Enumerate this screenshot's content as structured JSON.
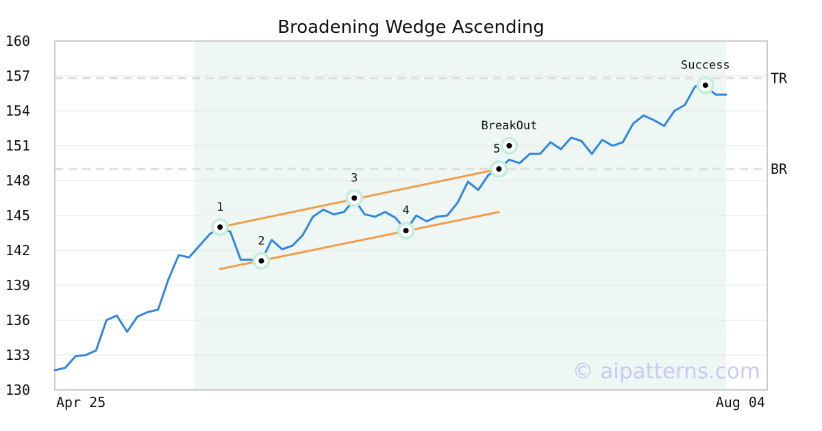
{
  "chart_data": {
    "type": "line",
    "title": "Broadening Wedge Ascending",
    "ylim": [
      130,
      160
    ],
    "yticks": [
      130,
      133,
      136,
      139,
      142,
      145,
      148,
      151,
      154,
      157,
      160
    ],
    "xtick_labels": [
      "Apr 25",
      "Aug 04"
    ],
    "grid": "horizontal",
    "watermark": "© aipatterns.com",
    "colors": {
      "price": "#2e86de",
      "trendline": "#f39c47",
      "highlight_region": "#eef7f3",
      "marker_halo": "#c5eedb",
      "reference_line": "#dddddd"
    },
    "series": [
      {
        "values": [
          131.7,
          131.9,
          132.9,
          133.0,
          133.4,
          136.0,
          136.4,
          135.0,
          136.3,
          136.7,
          136.9,
          139.5,
          141.6,
          141.4,
          142.4,
          143.4,
          144.0,
          143.6,
          141.2,
          141.2,
          141.1,
          142.9,
          142.1,
          142.4,
          143.3,
          144.9,
          145.5,
          145.1,
          145.3,
          146.4,
          145.1,
          144.9,
          145.3,
          144.8,
          143.7,
          145.0,
          144.5,
          144.9,
          145.0,
          146.1,
          147.9,
          147.2,
          148.5,
          149.0,
          149.8,
          149.5,
          150.3,
          150.3,
          151.3,
          150.7,
          151.7,
          151.4,
          150.3,
          151.5,
          151.0,
          151.3,
          152.9,
          153.6,
          153.2,
          152.7,
          154.0,
          154.5,
          156.1,
          156.1,
          155.4,
          155.4
        ]
      }
    ],
    "highlight_region": {
      "from_index": 14,
      "to_index": 65
    },
    "reference_lines": [
      {
        "label": "TR",
        "value": 156.8
      },
      {
        "label": "BR",
        "value": 149.0
      }
    ],
    "trendlines": [
      {
        "from": {
          "index": 16,
          "value": 144.0
        },
        "to": {
          "index": 43,
          "value": 149.0
        }
      },
      {
        "from": {
          "index": 16,
          "value": 140.4
        },
        "to": {
          "index": 43,
          "value": 145.3
        }
      }
    ],
    "points": [
      {
        "label": "1",
        "index": 16,
        "value": 144.0
      },
      {
        "label": "2",
        "index": 20,
        "value": 141.1
      },
      {
        "label": "3",
        "index": 29,
        "value": 146.5
      },
      {
        "label": "4",
        "index": 34,
        "value": 143.7
      },
      {
        "label": "5",
        "index": 43,
        "value": 149.0
      }
    ],
    "annotations": [
      {
        "label": "BreakOut",
        "index": 44,
        "value": 151.0
      },
      {
        "label": "Success",
        "index": 63,
        "value": 156.2
      }
    ]
  }
}
